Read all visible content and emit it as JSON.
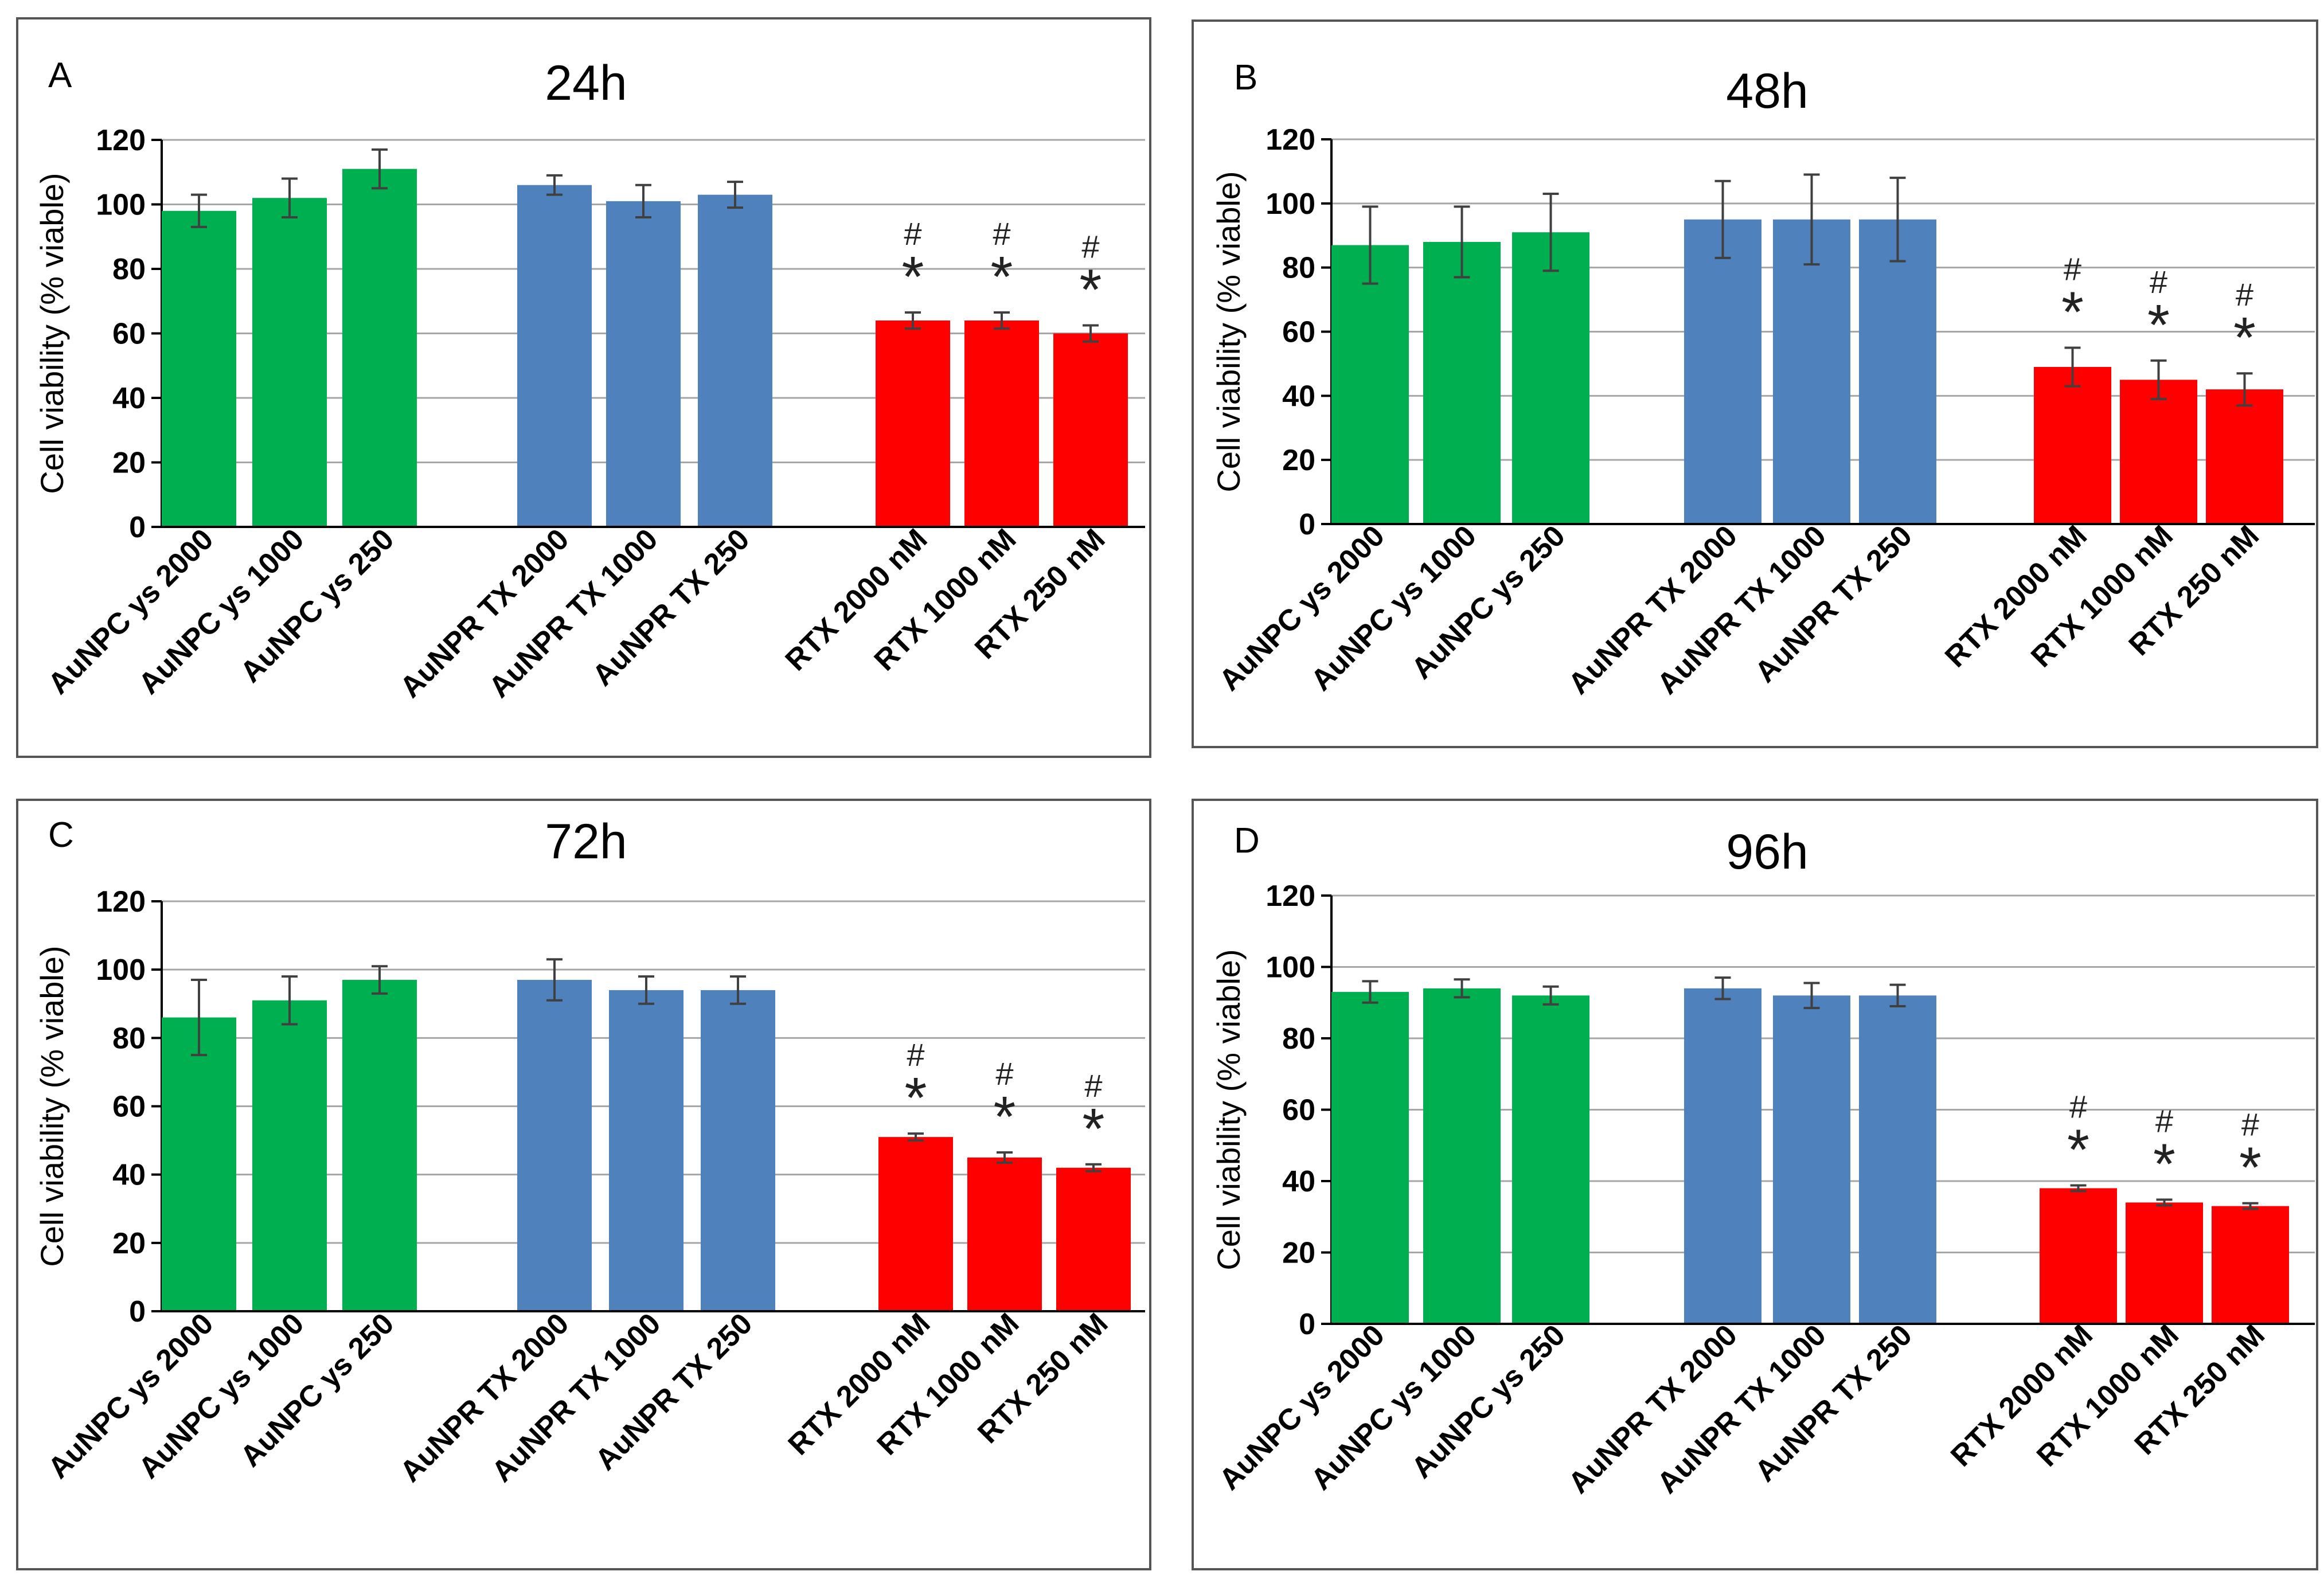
{
  "colors": {
    "green": "#00b050",
    "blue": "#4f81bd",
    "red": "#ff0000",
    "grid": "#a6a6a6",
    "error": "#404040"
  },
  "chart_data": [
    {
      "type": "bar",
      "panel": "A",
      "title": "24h",
      "ylabel": "Cell viability (% viable)",
      "ylim": [
        0,
        120
      ],
      "yticks": [
        "0",
        "20",
        "40",
        "60",
        "80",
        "100",
        "120"
      ],
      "categories": [
        "AuNPC ys 2000",
        "AuNPC ys 1000",
        "AuNPC ys 250",
        "AuNPR TX 2000",
        "AuNPR TX 1000",
        "AuNPR TX 250",
        "RTX 2000 nM",
        "RTX 1000 nM",
        "RTX 250 nM"
      ],
      "values": [
        98,
        102,
        111,
        106,
        101,
        103,
        64,
        64,
        60
      ],
      "errors": [
        5,
        6,
        6,
        3,
        5,
        4,
        2.5,
        2.5,
        2.5
      ],
      "groups": [
        "green",
        "green",
        "green",
        "blue",
        "blue",
        "blue",
        "red",
        "red",
        "red"
      ],
      "sig_hash": [
        "",
        "",
        "",
        "",
        "",
        "",
        "#",
        "#",
        "#"
      ],
      "sig_star": [
        "",
        "",
        "",
        "",
        "",
        "",
        "*",
        "*",
        "*"
      ]
    },
    {
      "type": "bar",
      "panel": "B",
      "title": "48h",
      "ylabel": "Cell viability (% viable)",
      "ylim": [
        0,
        120
      ],
      "yticks": [
        "0",
        "20",
        "40",
        "60",
        "80",
        "100",
        "120"
      ],
      "categories": [
        "AuNPC ys 2000",
        "AuNPC ys 1000",
        "AuNPC ys 250",
        "AuNPR TX 2000",
        "AuNPR TX 1000",
        "AuNPR TX 250",
        "RTX 2000 nM",
        "RTX 1000 nM",
        "RTX 250 nM"
      ],
      "values": [
        87,
        88,
        91,
        95,
        95,
        95,
        49,
        45,
        42
      ],
      "errors": [
        12,
        11,
        12,
        12,
        14,
        13,
        6,
        6,
        5
      ],
      "groups": [
        "green",
        "green",
        "green",
        "blue",
        "blue",
        "blue",
        "red",
        "red",
        "red"
      ],
      "sig_hash": [
        "",
        "",
        "",
        "",
        "",
        "",
        "#",
        "#",
        "#"
      ],
      "sig_star": [
        "",
        "",
        "",
        "",
        "",
        "",
        "*",
        "*",
        "*"
      ]
    },
    {
      "type": "bar",
      "panel": "C",
      "title": "72h",
      "ylabel": "Cell viability (% viable)",
      "ylim": [
        0,
        120
      ],
      "yticks": [
        "0",
        "20",
        "40",
        "60",
        "80",
        "100",
        "120"
      ],
      "categories": [
        "AuNPC ys 2000",
        "AuNPC ys 1000",
        "AuNPC ys 250",
        "AuNPR TX 2000",
        "AuNPR TX 1000",
        "AuNPR TX 250",
        "RTX 2000 nM",
        "RTX 1000 nM",
        "RTX 250 nM"
      ],
      "values": [
        86,
        91,
        97,
        97,
        94,
        94,
        51,
        45,
        42
      ],
      "errors": [
        11,
        7,
        4,
        6,
        4,
        4,
        1,
        1.5,
        1
      ],
      "groups": [
        "green",
        "green",
        "green",
        "blue",
        "blue",
        "blue",
        "red",
        "red",
        "red"
      ],
      "sig_hash": [
        "",
        "",
        "",
        "",
        "",
        "",
        "#",
        "#",
        "#"
      ],
      "sig_star": [
        "",
        "",
        "",
        "",
        "",
        "",
        "*",
        "*",
        "*"
      ]
    },
    {
      "type": "bar",
      "panel": "D",
      "title": "96h",
      "ylabel": "Cell viability (% viable)",
      "ylim": [
        0,
        120
      ],
      "yticks": [
        "0",
        "20",
        "40",
        "60",
        "80",
        "100",
        "120"
      ],
      "categories": [
        "AuNPC ys 2000",
        "AuNPC ys 1000",
        "AuNPC ys 250",
        "AuNPR TX 2000",
        "AuNPR TX 1000",
        "AuNPR TX 250",
        "RTX 2000 nM",
        "RTX 1000 nM",
        "RTX 250 nM"
      ],
      "values": [
        93,
        94,
        92,
        94,
        92,
        92,
        38,
        34,
        33
      ],
      "errors": [
        3,
        2.5,
        2.5,
        3,
        3.5,
        3,
        0.8,
        0.8,
        0.8
      ],
      "groups": [
        "green",
        "green",
        "green",
        "blue",
        "blue",
        "blue",
        "red",
        "red",
        "red"
      ],
      "sig_hash": [
        "",
        "",
        "",
        "",
        "",
        "",
        "#",
        "#",
        "#"
      ],
      "sig_star": [
        "",
        "",
        "",
        "",
        "",
        "",
        "*",
        "*",
        "*"
      ]
    }
  ]
}
